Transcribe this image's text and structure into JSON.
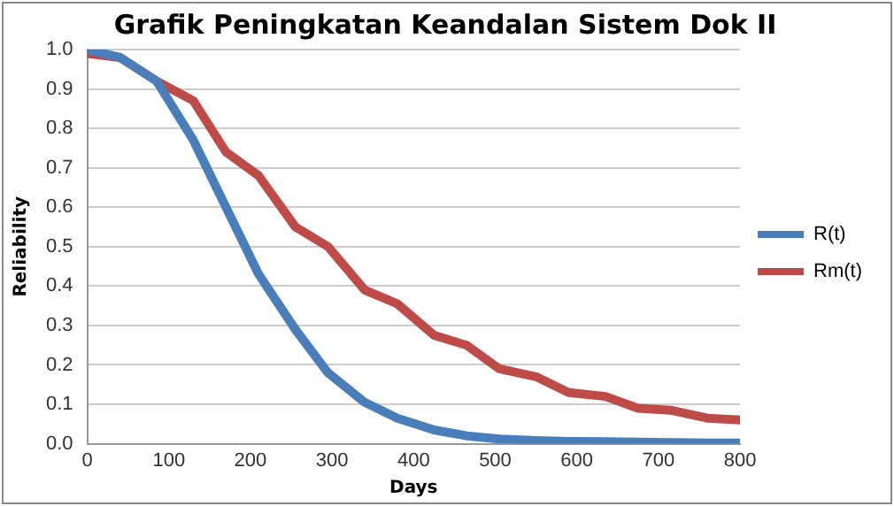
{
  "chart_data": {
    "type": "line",
    "title": "Grafik Peningkatan Keandalan Sistem Dok II",
    "xlabel": "Days",
    "ylabel": "Reliability",
    "x": [
      0,
      40,
      85,
      130,
      170,
      210,
      255,
      295,
      340,
      380,
      425,
      465,
      505,
      550,
      590,
      635,
      675,
      715,
      760,
      800
    ],
    "series": [
      {
        "name": "R(t)",
        "color": "#4a7ebb",
        "values": [
          1.0,
          0.98,
          0.92,
          0.77,
          0.6,
          0.43,
          0.29,
          0.18,
          0.105,
          0.065,
          0.035,
          0.02,
          0.012,
          0.008,
          0.006,
          0.005,
          0.004,
          0.003,
          0.002,
          0.002
        ]
      },
      {
        "name": "Rm(t)",
        "color": "#be4b48",
        "values": [
          0.99,
          0.98,
          0.92,
          0.87,
          0.74,
          0.68,
          0.55,
          0.5,
          0.39,
          0.355,
          0.275,
          0.25,
          0.19,
          0.17,
          0.13,
          0.12,
          0.09,
          0.085,
          0.065,
          0.06
        ]
      }
    ],
    "xlim": [
      0,
      800
    ],
    "xticks": [
      0,
      100,
      200,
      300,
      400,
      500,
      600,
      700,
      800
    ],
    "ylim": [
      0,
      1
    ],
    "yticks": [
      {
        "value": 0,
        "label": "0.0"
      },
      {
        "value": 0.1,
        "label": "0.1"
      },
      {
        "value": 0.2,
        "label": "0.2"
      },
      {
        "value": 0.3,
        "label": "0.3"
      },
      {
        "value": 0.4,
        "label": "0.4"
      },
      {
        "value": 0.5,
        "label": "0.5"
      },
      {
        "value": 0.6,
        "label": "0.6"
      },
      {
        "value": 0.7,
        "label": "0.7"
      },
      {
        "value": 0.8,
        "label": "0.8"
      },
      {
        "value": 0.9,
        "label": "0.9"
      },
      {
        "value": 1,
        "label": "1.0"
      }
    ],
    "grid": "y",
    "legend": "right",
    "marker": "none",
    "line_style": "solid"
  }
}
